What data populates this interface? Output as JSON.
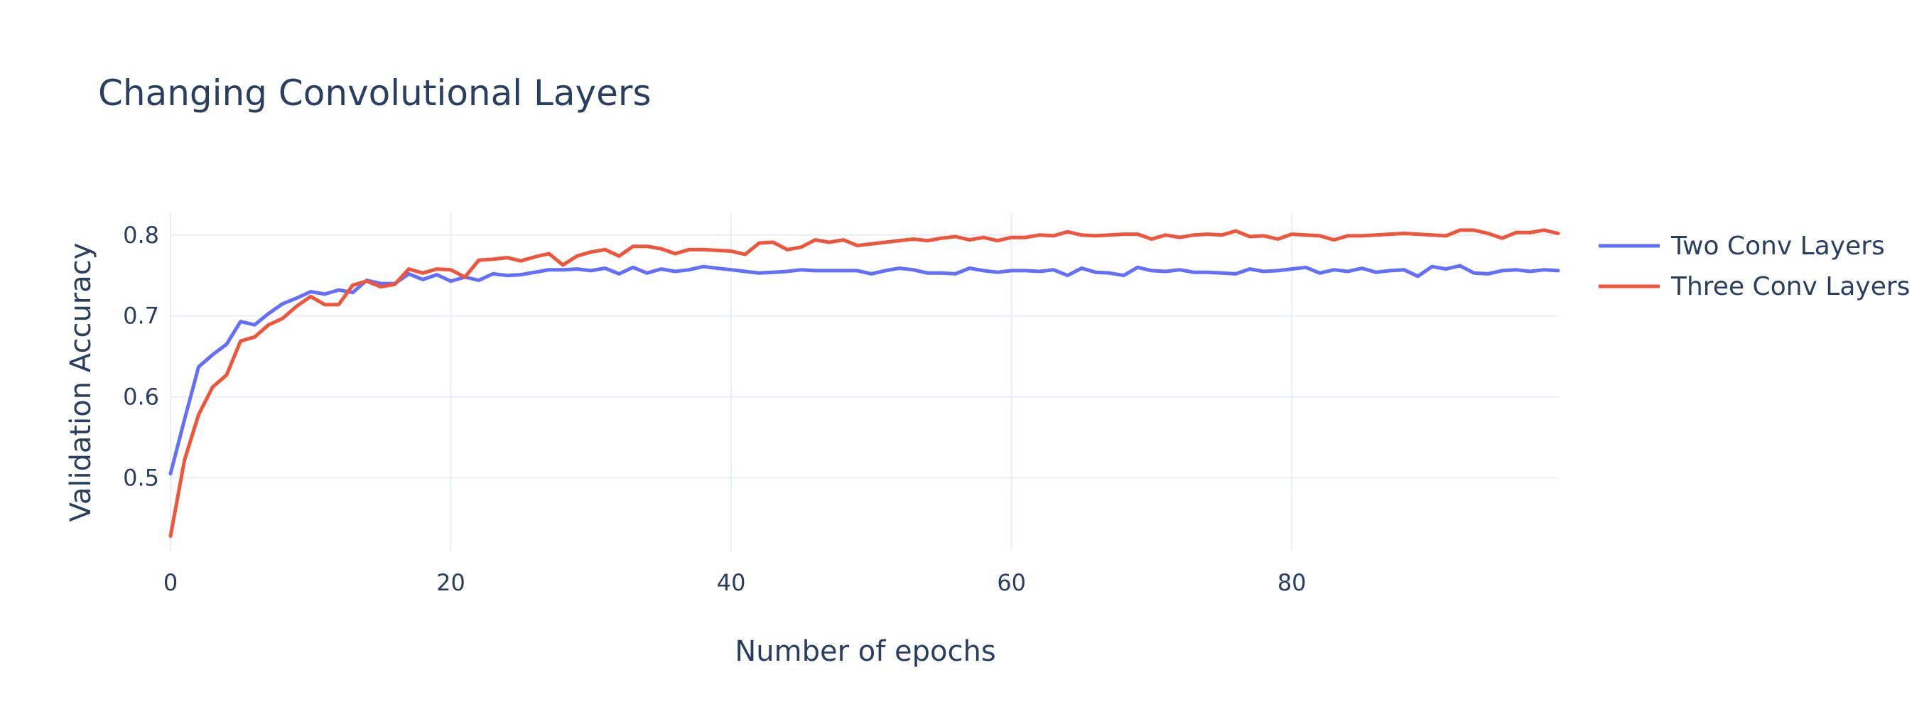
{
  "chart_data": {
    "type": "line",
    "title": "Changing Convolutional Layers",
    "xlabel": "Number of epochs",
    "ylabel": "Validation Accuracy",
    "xlim": [
      0,
      99
    ],
    "ylim": [
      0.41,
      0.827
    ],
    "xticks": [
      0,
      20,
      40,
      60,
      80
    ],
    "yticks": [
      0.5,
      0.6,
      0.7,
      0.8
    ],
    "xtick_labels": [
      "0",
      "20",
      "40",
      "60",
      "80"
    ],
    "ytick_labels": [
      "0.5",
      "0.6",
      "0.7",
      "0.8"
    ],
    "grid": true,
    "legend_position": "top-right, outside plot",
    "x": [
      0,
      1,
      2,
      3,
      4,
      5,
      6,
      7,
      8,
      9,
      10,
      11,
      12,
      13,
      14,
      15,
      16,
      17,
      18,
      19,
      20,
      21,
      22,
      23,
      24,
      25,
      26,
      27,
      28,
      29,
      30,
      31,
      32,
      33,
      34,
      35,
      36,
      37,
      38,
      39,
      40,
      41,
      42,
      43,
      44,
      45,
      46,
      47,
      48,
      49,
      50,
      51,
      52,
      53,
      54,
      55,
      56,
      57,
      58,
      59,
      60,
      61,
      62,
      63,
      64,
      65,
      66,
      67,
      68,
      69,
      70,
      71,
      72,
      73,
      74,
      75,
      76,
      77,
      78,
      79,
      80,
      81,
      82,
      83,
      84,
      85,
      86,
      87,
      88,
      89,
      90,
      91,
      92,
      93,
      94,
      95,
      96,
      97,
      98,
      99
    ],
    "series": [
      {
        "name": "Two Conv Layers",
        "color": "#636efa",
        "values": [
          0.505,
          0.572,
          0.637,
          0.652,
          0.665,
          0.693,
          0.689,
          0.703,
          0.715,
          0.722,
          0.73,
          0.727,
          0.732,
          0.729,
          0.744,
          0.74,
          0.74,
          0.752,
          0.745,
          0.751,
          0.743,
          0.748,
          0.744,
          0.752,
          0.75,
          0.751,
          0.754,
          0.757,
          0.757,
          0.758,
          0.756,
          0.759,
          0.752,
          0.76,
          0.753,
          0.758,
          0.755,
          0.757,
          0.761,
          0.759,
          0.757,
          0.755,
          0.753,
          0.754,
          0.755,
          0.757,
          0.756,
          0.756,
          0.756,
          0.756,
          0.752,
          0.756,
          0.759,
          0.757,
          0.753,
          0.753,
          0.752,
          0.759,
          0.756,
          0.754,
          0.756,
          0.756,
          0.755,
          0.757,
          0.75,
          0.759,
          0.754,
          0.753,
          0.75,
          0.76,
          0.756,
          0.755,
          0.757,
          0.754,
          0.754,
          0.753,
          0.752,
          0.758,
          0.755,
          0.756,
          0.758,
          0.76,
          0.753,
          0.757,
          0.755,
          0.759,
          0.754,
          0.756,
          0.757,
          0.749,
          0.761,
          0.758,
          0.762,
          0.753,
          0.752,
          0.756,
          0.757,
          0.755,
          0.757,
          0.756
        ]
      },
      {
        "name": "Three Conv Layers",
        "color": "#ef553b",
        "values": [
          0.428,
          0.522,
          0.578,
          0.612,
          0.627,
          0.669,
          0.674,
          0.689,
          0.697,
          0.712,
          0.724,
          0.714,
          0.714,
          0.738,
          0.743,
          0.736,
          0.739,
          0.758,
          0.753,
          0.758,
          0.757,
          0.748,
          0.769,
          0.77,
          0.772,
          0.768,
          0.773,
          0.777,
          0.763,
          0.774,
          0.779,
          0.782,
          0.774,
          0.786,
          0.786,
          0.783,
          0.777,
          0.782,
          0.782,
          0.781,
          0.78,
          0.776,
          0.79,
          0.791,
          0.782,
          0.785,
          0.794,
          0.791,
          0.794,
          0.787,
          0.789,
          0.791,
          0.793,
          0.795,
          0.793,
          0.796,
          0.798,
          0.794,
          0.797,
          0.793,
          0.797,
          0.797,
          0.8,
          0.799,
          0.804,
          0.8,
          0.799,
          0.8,
          0.801,
          0.801,
          0.795,
          0.8,
          0.797,
          0.8,
          0.801,
          0.8,
          0.805,
          0.798,
          0.799,
          0.795,
          0.801,
          0.8,
          0.799,
          0.794,
          0.799,
          0.799,
          0.8,
          0.801,
          0.802,
          0.801,
          0.8,
          0.799,
          0.806,
          0.806,
          0.802,
          0.796,
          0.803,
          0.803,
          0.806,
          0.802
        ]
      }
    ]
  }
}
